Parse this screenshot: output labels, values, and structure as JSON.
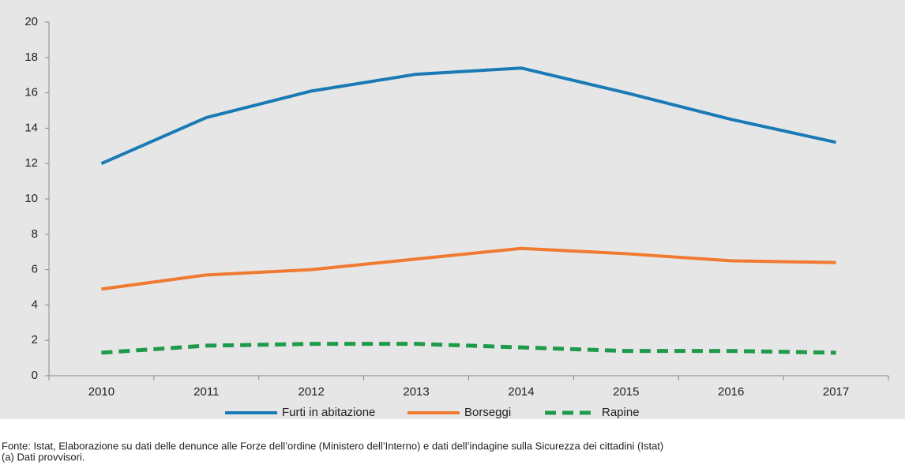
{
  "chart_data": {
    "type": "line",
    "categories": [
      "2010",
      "2011",
      "2012",
      "2013",
      "2014",
      "2015",
      "2016",
      "2017"
    ],
    "series": [
      {
        "name": "Furti in abitazione",
        "color": "#1a7ab5",
        "dash": false,
        "values": [
          12.0,
          14.6,
          16.1,
          17.05,
          17.4,
          16.0,
          14.5,
          13.2
        ]
      },
      {
        "name": "Borseggi",
        "color": "#f07a30",
        "dash": false,
        "values": [
          4.9,
          5.7,
          6.0,
          6.6,
          7.2,
          6.9,
          6.5,
          6.4
        ]
      },
      {
        "name": "Rapine",
        "color": "#1e9b4a",
        "dash": true,
        "values": [
          1.3,
          1.7,
          1.8,
          1.8,
          1.6,
          1.4,
          1.4,
          1.3
        ]
      }
    ],
    "ylim": [
      0,
      20
    ],
    "yticks": [
      0,
      2,
      4,
      6,
      8,
      10,
      12,
      14,
      16,
      18,
      20
    ],
    "grid": false,
    "legend": "bottom",
    "source": "Fonte: Istat, Elaborazione su dati delle denunce alle Forze dell’ordine (Ministero dell’Interno) e dati dell’indagine sulla Sicurezza dei cittadini (Istat)",
    "note": "(a) Dati provvisori."
  }
}
